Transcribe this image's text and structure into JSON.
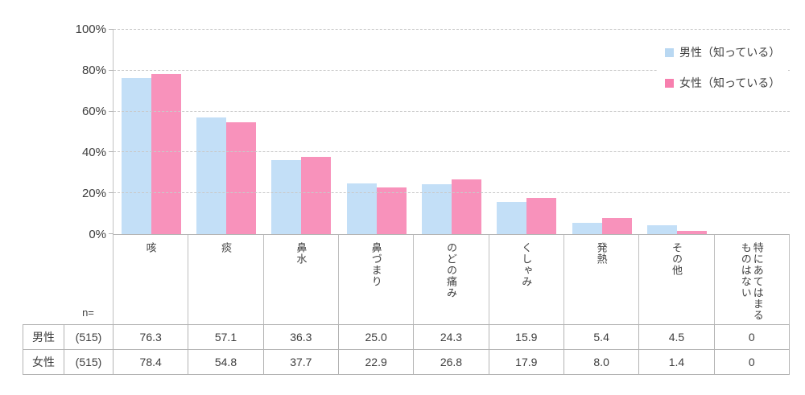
{
  "chart_data": {
    "type": "bar",
    "title": "",
    "xlabel": "",
    "ylabel": "",
    "ylim": [
      0,
      100
    ],
    "grid": "horizontal-dashed",
    "legend_position": "top-right-inside",
    "categories": [
      "咳",
      "痰",
      "鼻水",
      "鼻づまり",
      "のどの痛み",
      "くしゃみ",
      "発熱",
      "その他",
      "特にあてはまる\nものはない"
    ],
    "series": [
      {
        "name": "男性（知っている）",
        "color": "#c3dff7",
        "values": [
          76.3,
          57.1,
          36.3,
          25.0,
          24.3,
          15.9,
          5.4,
          4.5,
          0
        ]
      },
      {
        "name": "女性（知っている）",
        "color": "#f892bb",
        "values": [
          78.4,
          54.8,
          37.7,
          22.9,
          26.8,
          17.9,
          8.0,
          1.4,
          0
        ]
      }
    ],
    "yticks": [
      {
        "value": 0,
        "label": "0%"
      },
      {
        "value": 20,
        "label": "20%"
      },
      {
        "value": 40,
        "label": "40%"
      },
      {
        "value": 60,
        "label": "60%"
      },
      {
        "value": 80,
        "label": "80%"
      },
      {
        "value": 100,
        "label": "100%"
      }
    ]
  },
  "legend": {
    "items": [
      {
        "label": "男性（知っている）",
        "color": "#b9d8f2"
      },
      {
        "label": "女性（知っている）",
        "color": "#f77fae"
      }
    ]
  },
  "table": {
    "n_header": "n=",
    "rows": [
      {
        "label": "男性",
        "n": "(515)",
        "values": [
          "76.3",
          "57.1",
          "36.3",
          "25.0",
          "24.3",
          "15.9",
          "5.4",
          "4.5",
          "0"
        ]
      },
      {
        "label": "女性",
        "n": "(515)",
        "values": [
          "78.4",
          "54.8",
          "37.7",
          "22.9",
          "26.8",
          "17.9",
          "8.0",
          "1.4",
          "0"
        ]
      }
    ]
  }
}
